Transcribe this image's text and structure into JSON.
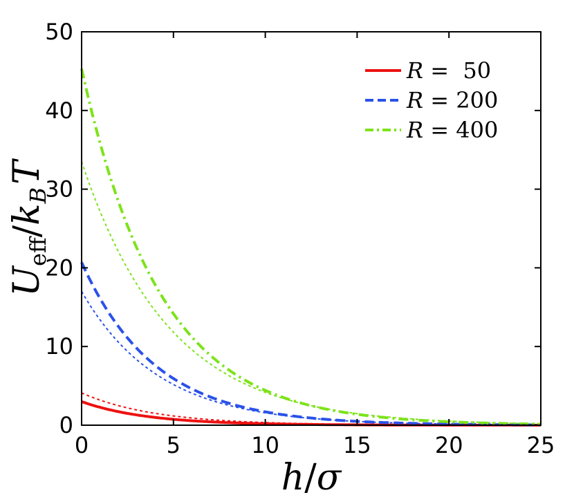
{
  "chart_data": {
    "type": "line",
    "xlabel_parts": {
      "main": "h",
      "slash": "/",
      "denom": "σ"
    },
    "ylabel_parts": {
      "main": "U",
      "sub": "eff",
      "slash": "/",
      "k": "k",
      "ksub": "B",
      "t": "T"
    },
    "xlim": [
      0,
      25
    ],
    "ylim": [
      0,
      50
    ],
    "xticks": [
      "0",
      "5",
      "10",
      "15",
      "20",
      "25"
    ],
    "yticks": [
      "0",
      "10",
      "20",
      "30",
      "40",
      "50"
    ],
    "legend_position": "top-right",
    "grid": false,
    "series": [
      {
        "name": "R =  50",
        "name_var": "R",
        "name_rest": " =  50",
        "color": "#ee1111",
        "style": "solid",
        "in_legend": true,
        "A": 3.0,
        "lambda": 3.6
      },
      {
        "name": "R = 200",
        "name_var": "R",
        "name_rest": " = 200",
        "color": "#2a52e8",
        "style": "dashed",
        "in_legend": true,
        "A": 20.7,
        "lambda": 4.0
      },
      {
        "name": "R = 400",
        "name_var": "R",
        "name_rest": " = 400",
        "color": "#7de31a",
        "style": "dashdot",
        "in_legend": true,
        "A": 45.3,
        "lambda": 4.3
      },
      {
        "color": "#ee1111",
        "style": "dotted",
        "in_legend": false,
        "A": 4.1,
        "lambda": 4.0
      },
      {
        "color": "#2a52e8",
        "style": "dotted",
        "in_legend": false,
        "A": 17.0,
        "lambda": 4.2
      },
      {
        "color": "#7de31a",
        "style": "dotted",
        "in_legend": false,
        "A": 33.5,
        "lambda": 4.8
      }
    ]
  }
}
